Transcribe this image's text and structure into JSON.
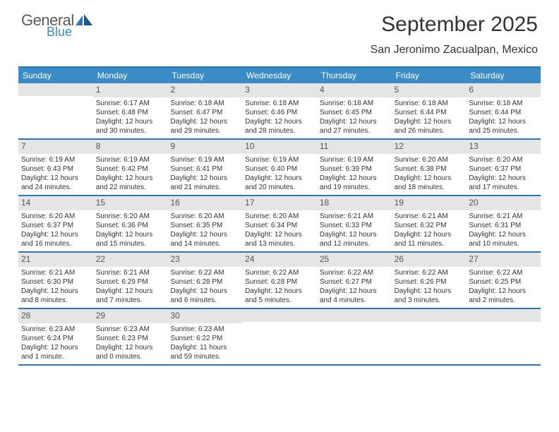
{
  "logo": {
    "general": "General",
    "blue": "Blue"
  },
  "title": "September 2025",
  "location": "San Jeronimo Zacualpan, Mexico",
  "colors": {
    "header_bg": "#3b8bc6",
    "border": "#2b78b5",
    "daynum_bg": "#e5e5e5",
    "text": "#333333"
  },
  "dow": [
    "Sunday",
    "Monday",
    "Tuesday",
    "Wednesday",
    "Thursday",
    "Friday",
    "Saturday"
  ],
  "weeks": [
    [
      {
        "n": "",
        "t": ""
      },
      {
        "n": "1",
        "t": "Sunrise: 6:17 AM\nSunset: 6:48 PM\nDaylight: 12 hours and 30 minutes."
      },
      {
        "n": "2",
        "t": "Sunrise: 6:18 AM\nSunset: 6:47 PM\nDaylight: 12 hours and 29 minutes."
      },
      {
        "n": "3",
        "t": "Sunrise: 6:18 AM\nSunset: 6:46 PM\nDaylight: 12 hours and 28 minutes."
      },
      {
        "n": "4",
        "t": "Sunrise: 6:18 AM\nSunset: 6:45 PM\nDaylight: 12 hours and 27 minutes."
      },
      {
        "n": "5",
        "t": "Sunrise: 6:18 AM\nSunset: 6:44 PM\nDaylight: 12 hours and 26 minutes."
      },
      {
        "n": "6",
        "t": "Sunrise: 6:18 AM\nSunset: 6:44 PM\nDaylight: 12 hours and 25 minutes."
      }
    ],
    [
      {
        "n": "7",
        "t": "Sunrise: 6:19 AM\nSunset: 6:43 PM\nDaylight: 12 hours and 24 minutes."
      },
      {
        "n": "8",
        "t": "Sunrise: 6:19 AM\nSunset: 6:42 PM\nDaylight: 12 hours and 22 minutes."
      },
      {
        "n": "9",
        "t": "Sunrise: 6:19 AM\nSunset: 6:41 PM\nDaylight: 12 hours and 21 minutes."
      },
      {
        "n": "10",
        "t": "Sunrise: 6:19 AM\nSunset: 6:40 PM\nDaylight: 12 hours and 20 minutes."
      },
      {
        "n": "11",
        "t": "Sunrise: 6:19 AM\nSunset: 6:39 PM\nDaylight: 12 hours and 19 minutes."
      },
      {
        "n": "12",
        "t": "Sunrise: 6:20 AM\nSunset: 6:38 PM\nDaylight: 12 hours and 18 minutes."
      },
      {
        "n": "13",
        "t": "Sunrise: 6:20 AM\nSunset: 6:37 PM\nDaylight: 12 hours and 17 minutes."
      }
    ],
    [
      {
        "n": "14",
        "t": "Sunrise: 6:20 AM\nSunset: 6:37 PM\nDaylight: 12 hours and 16 minutes."
      },
      {
        "n": "15",
        "t": "Sunrise: 6:20 AM\nSunset: 6:36 PM\nDaylight: 12 hours and 15 minutes."
      },
      {
        "n": "16",
        "t": "Sunrise: 6:20 AM\nSunset: 6:35 PM\nDaylight: 12 hours and 14 minutes."
      },
      {
        "n": "17",
        "t": "Sunrise: 6:20 AM\nSunset: 6:34 PM\nDaylight: 12 hours and 13 minutes."
      },
      {
        "n": "18",
        "t": "Sunrise: 6:21 AM\nSunset: 6:33 PM\nDaylight: 12 hours and 12 minutes."
      },
      {
        "n": "19",
        "t": "Sunrise: 6:21 AM\nSunset: 6:32 PM\nDaylight: 12 hours and 11 minutes."
      },
      {
        "n": "20",
        "t": "Sunrise: 6:21 AM\nSunset: 6:31 PM\nDaylight: 12 hours and 10 minutes."
      }
    ],
    [
      {
        "n": "21",
        "t": "Sunrise: 6:21 AM\nSunset: 6:30 PM\nDaylight: 12 hours and 8 minutes."
      },
      {
        "n": "22",
        "t": "Sunrise: 6:21 AM\nSunset: 6:29 PM\nDaylight: 12 hours and 7 minutes."
      },
      {
        "n": "23",
        "t": "Sunrise: 6:22 AM\nSunset: 6:28 PM\nDaylight: 12 hours and 6 minutes."
      },
      {
        "n": "24",
        "t": "Sunrise: 6:22 AM\nSunset: 6:28 PM\nDaylight: 12 hours and 5 minutes."
      },
      {
        "n": "25",
        "t": "Sunrise: 6:22 AM\nSunset: 6:27 PM\nDaylight: 12 hours and 4 minutes."
      },
      {
        "n": "26",
        "t": "Sunrise: 6:22 AM\nSunset: 6:26 PM\nDaylight: 12 hours and 3 minutes."
      },
      {
        "n": "27",
        "t": "Sunrise: 6:22 AM\nSunset: 6:25 PM\nDaylight: 12 hours and 2 minutes."
      }
    ],
    [
      {
        "n": "28",
        "t": "Sunrise: 6:23 AM\nSunset: 6:24 PM\nDaylight: 12 hours and 1 minute."
      },
      {
        "n": "29",
        "t": "Sunrise: 6:23 AM\nSunset: 6:23 PM\nDaylight: 12 hours and 0 minutes."
      },
      {
        "n": "30",
        "t": "Sunrise: 6:23 AM\nSunset: 6:22 PM\nDaylight: 11 hours and 59 minutes."
      },
      {
        "n": "",
        "t": ""
      },
      {
        "n": "",
        "t": ""
      },
      {
        "n": "",
        "t": ""
      },
      {
        "n": "",
        "t": ""
      }
    ]
  ]
}
